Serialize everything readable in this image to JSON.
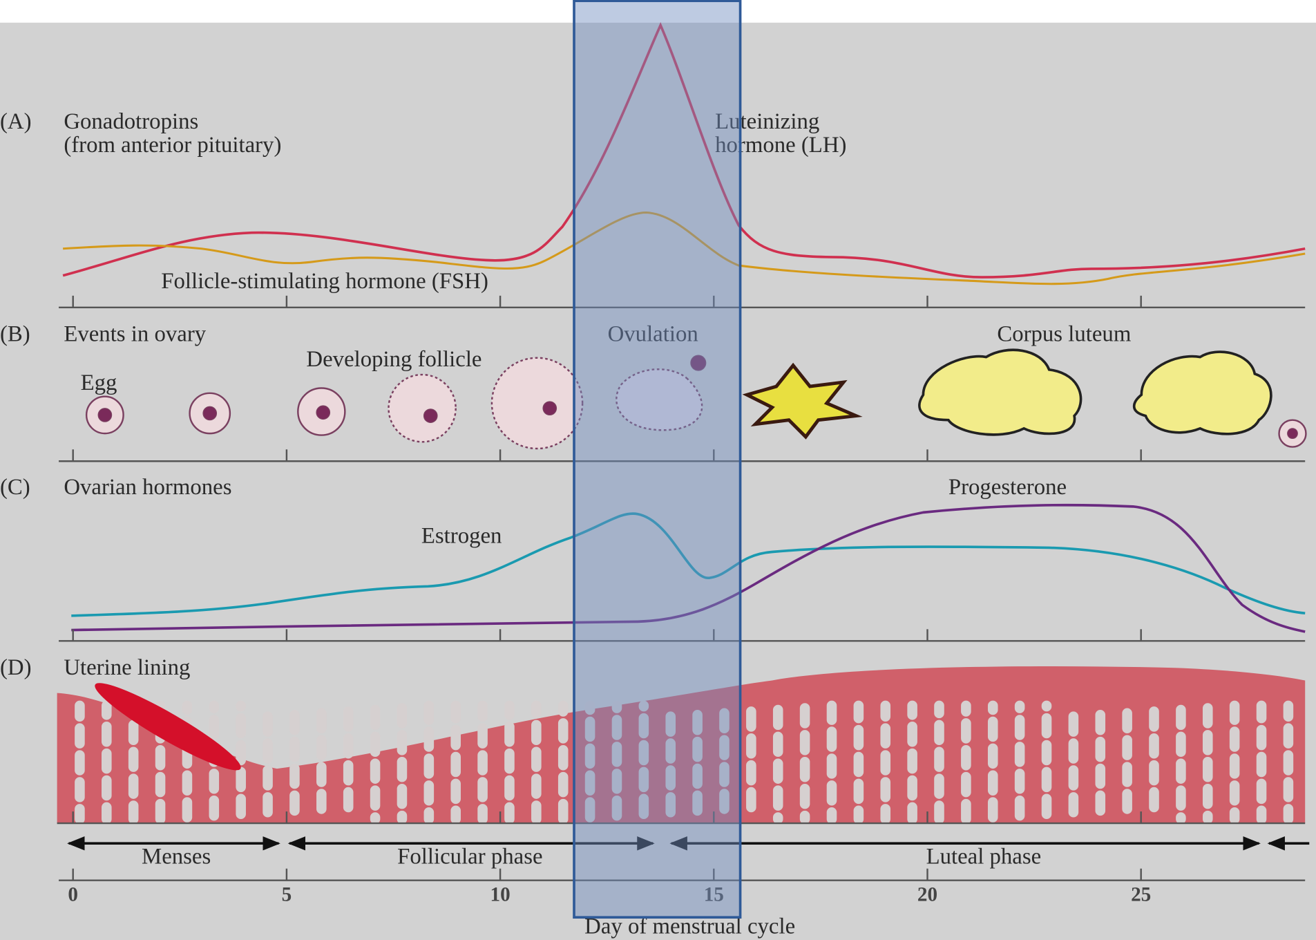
{
  "panels": [
    {
      "letter": "(A)",
      "title": "Gonadotropins",
      "subtitle": "(from anterior pituitary)"
    },
    {
      "letter": "(B)",
      "title": "Events in ovary"
    },
    {
      "letter": "(C)",
      "title": "Ovarian hormones"
    },
    {
      "letter": "(D)",
      "title": "Uterine lining"
    }
  ],
  "labels": {
    "lh_line1": "Luteinizing",
    "lh_line2": "hormone (LH)",
    "fsh": "Follicle-stimulating hormone (FSH)",
    "egg": "Egg",
    "developing_follicle": "Developing follicle",
    "ovulation": "Ovulation",
    "corpus_luteum": "Corpus luteum",
    "estrogen": "Estrogen",
    "progesterone": "Progesterone"
  },
  "phases": [
    "Menses",
    "Follicular phase",
    "Luteal phase"
  ],
  "axis": {
    "title": "Day of menstrual cycle",
    "ticks": [
      0,
      5,
      10,
      15,
      20,
      25
    ]
  }
}
